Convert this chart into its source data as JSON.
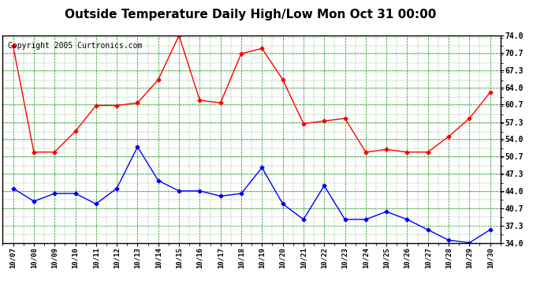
{
  "title": "Outside Temperature Daily High/Low Mon Oct 31 00:00",
  "copyright": "Copyright 2005 Curtronics.com",
  "x_labels": [
    "10/07",
    "10/08",
    "10/09",
    "10/10",
    "10/11",
    "10/12",
    "10/13",
    "10/14",
    "10/15",
    "10/16",
    "10/17",
    "10/18",
    "10/19",
    "10/20",
    "10/21",
    "10/22",
    "10/23",
    "10/24",
    "10/25",
    "10/26",
    "10/27",
    "10/28",
    "10/29",
    "10/30"
  ],
  "high_values": [
    72.0,
    51.5,
    51.5,
    55.5,
    60.5,
    60.5,
    61.0,
    65.5,
    74.0,
    61.5,
    61.0,
    70.5,
    71.5,
    65.5,
    57.0,
    57.5,
    58.0,
    51.5,
    52.0,
    51.5,
    51.5,
    54.5,
    58.0,
    63.0
  ],
  "low_values": [
    44.5,
    42.0,
    43.5,
    43.5,
    41.5,
    44.5,
    52.5,
    46.0,
    44.0,
    44.0,
    43.0,
    43.5,
    48.5,
    41.5,
    38.5,
    45.0,
    38.5,
    38.5,
    40.0,
    38.5,
    36.5,
    34.5,
    34.0,
    36.5
  ],
  "high_color": "red",
  "low_color": "blue",
  "bg_color": "white",
  "plot_bg_color": "white",
  "grid_color": "green",
  "y_ticks": [
    34.0,
    37.3,
    40.7,
    44.0,
    47.3,
    50.7,
    54.0,
    57.3,
    60.7,
    64.0,
    67.3,
    70.7,
    74.0
  ],
  "y_min": 34.0,
  "y_max": 74.0,
  "title_fontsize": 11,
  "copyright_fontsize": 7
}
